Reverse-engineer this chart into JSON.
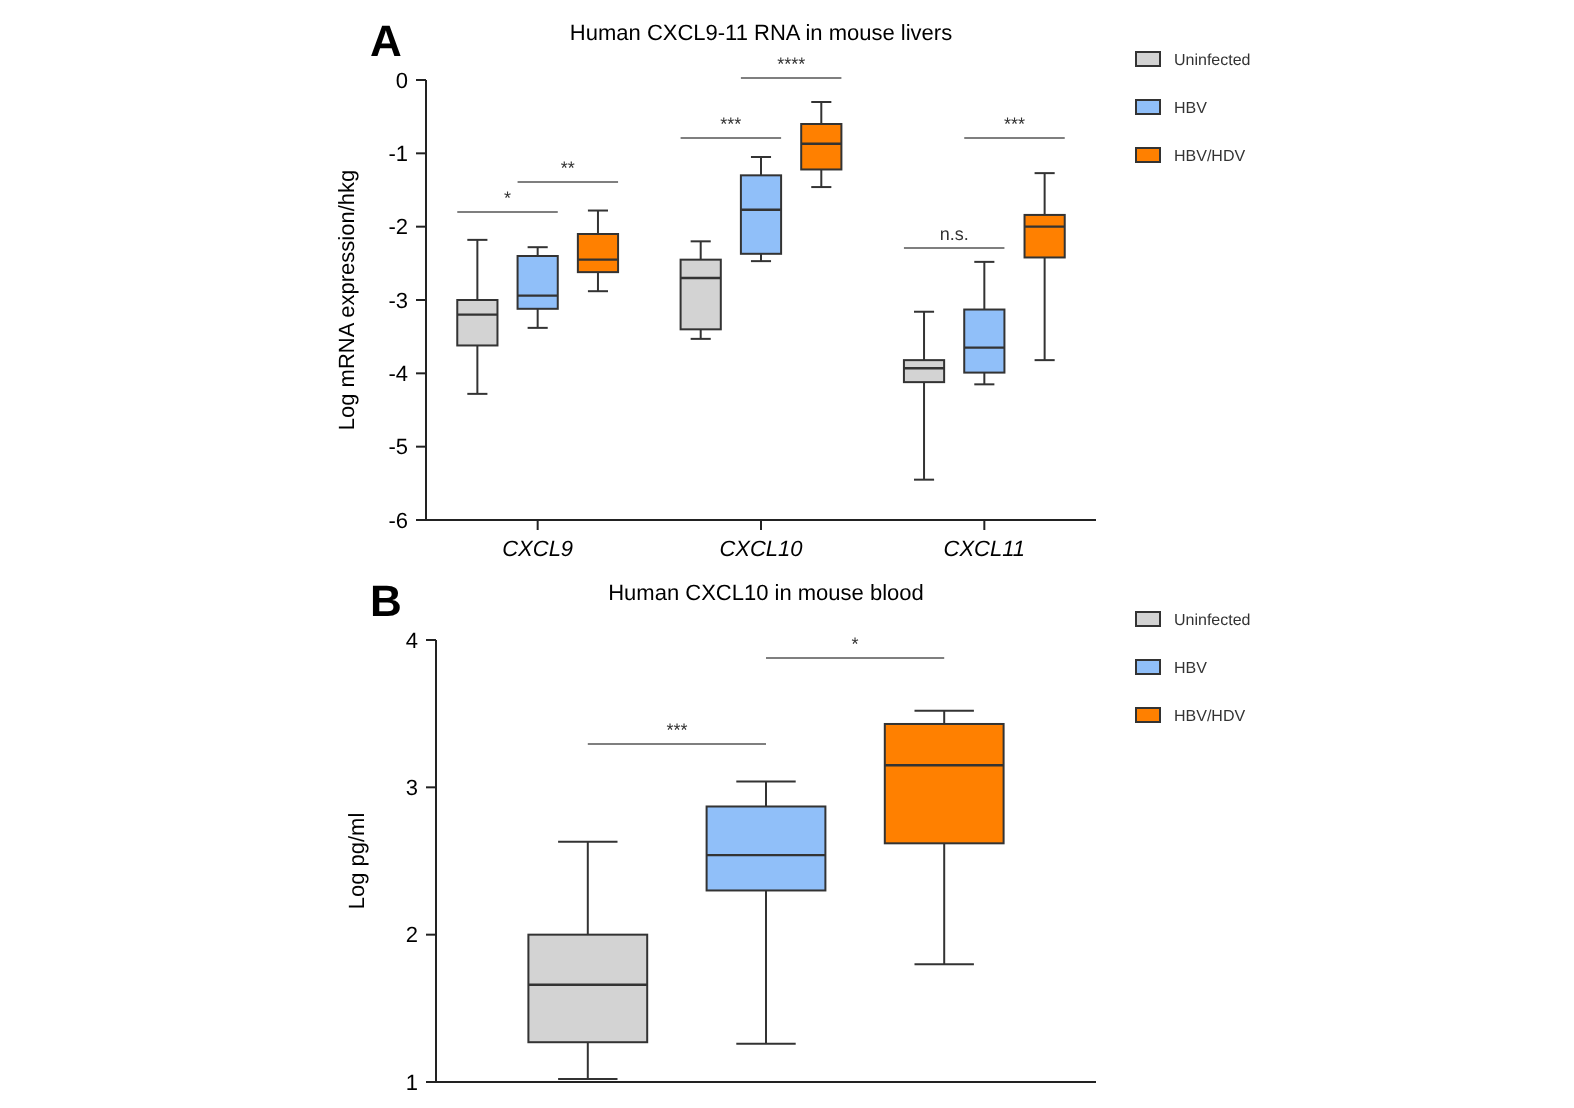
{
  "chart_data": [
    {
      "type": "box",
      "title": "Human CXCL9-11 RNA in mouse livers",
      "ylabel": "Log mRNA expression/hkg",
      "categories": [
        "CXCL9",
        "CXCL10",
        "CXCL11"
      ],
      "ylim": [
        -6,
        0
      ],
      "yticks": [
        -6,
        -5,
        -4,
        -3,
        -2,
        -1,
        0
      ],
      "legend": "top right",
      "series": [
        {
          "name": "Uninfected",
          "color": "#d3d3d3",
          "boxes": [
            {
              "low": -4.28,
              "q1": -3.62,
              "median": -3.2,
              "q3": -3.0,
              "high": -2.18
            },
            {
              "low": -3.53,
              "q1": -3.4,
              "median": -2.7,
              "q3": -2.45,
              "high": -2.2
            },
            {
              "low": -5.45,
              "q1": -4.12,
              "median": -3.93,
              "q3": -3.82,
              "high": -3.16
            }
          ]
        },
        {
          "name": "HBV",
          "color": "#90bff9",
          "boxes": [
            {
              "low": -3.38,
              "q1": -3.12,
              "median": -2.94,
              "q3": -2.4,
              "high": -2.28
            },
            {
              "low": -2.47,
              "q1": -2.37,
              "median": -1.77,
              "q3": -1.3,
              "high": -1.05
            },
            {
              "low": -4.15,
              "q1": -3.99,
              "median": -3.65,
              "q3": -3.13,
              "high": -2.48
            }
          ]
        },
        {
          "name": "HBV/HDV",
          "color": "#ff8000",
          "boxes": [
            {
              "low": -2.88,
              "q1": -2.62,
              "median": -2.45,
              "q3": -2.1,
              "high": -1.78
            },
            {
              "low": -1.46,
              "q1": -1.22,
              "median": -0.87,
              "q3": -0.6,
              "high": -0.3
            },
            {
              "low": -3.82,
              "q1": -2.42,
              "median": -2.0,
              "q3": -1.84,
              "high": -1.27
            }
          ]
        }
      ],
      "annotations": [
        "A",
        "*",
        "**",
        "***",
        "****",
        "n.s.",
        "***"
      ]
    },
    {
      "type": "box",
      "title": "Human CXCL10 in mouse blood",
      "ylabel": "Log pg/ml",
      "categories": [
        null
      ],
      "ylim": [
        1,
        4
      ],
      "yticks": [
        1,
        2,
        3,
        4
      ],
      "legend": "top right",
      "tick_labels": "y",
      "series": [
        {
          "name": "Uninfected",
          "color": "#d3d3d3",
          "boxes": [
            {
              "low": 1.02,
              "q1": 1.27,
              "median": 1.66,
              "q3": 2.0,
              "high": 2.63
            }
          ]
        },
        {
          "name": "HBV",
          "color": "#90bff9",
          "boxes": [
            {
              "low": 1.26,
              "q1": 2.3,
              "median": 2.54,
              "q3": 2.87,
              "high": 3.04
            }
          ]
        },
        {
          "name": "HBV/HDV",
          "color": "#ff8000",
          "boxes": [
            {
              "low": 1.8,
              "q1": 2.62,
              "median": 3.15,
              "q3": 3.43,
              "high": 3.52
            }
          ]
        }
      ],
      "annotations": [
        "B",
        "***",
        "*"
      ]
    }
  ]
}
